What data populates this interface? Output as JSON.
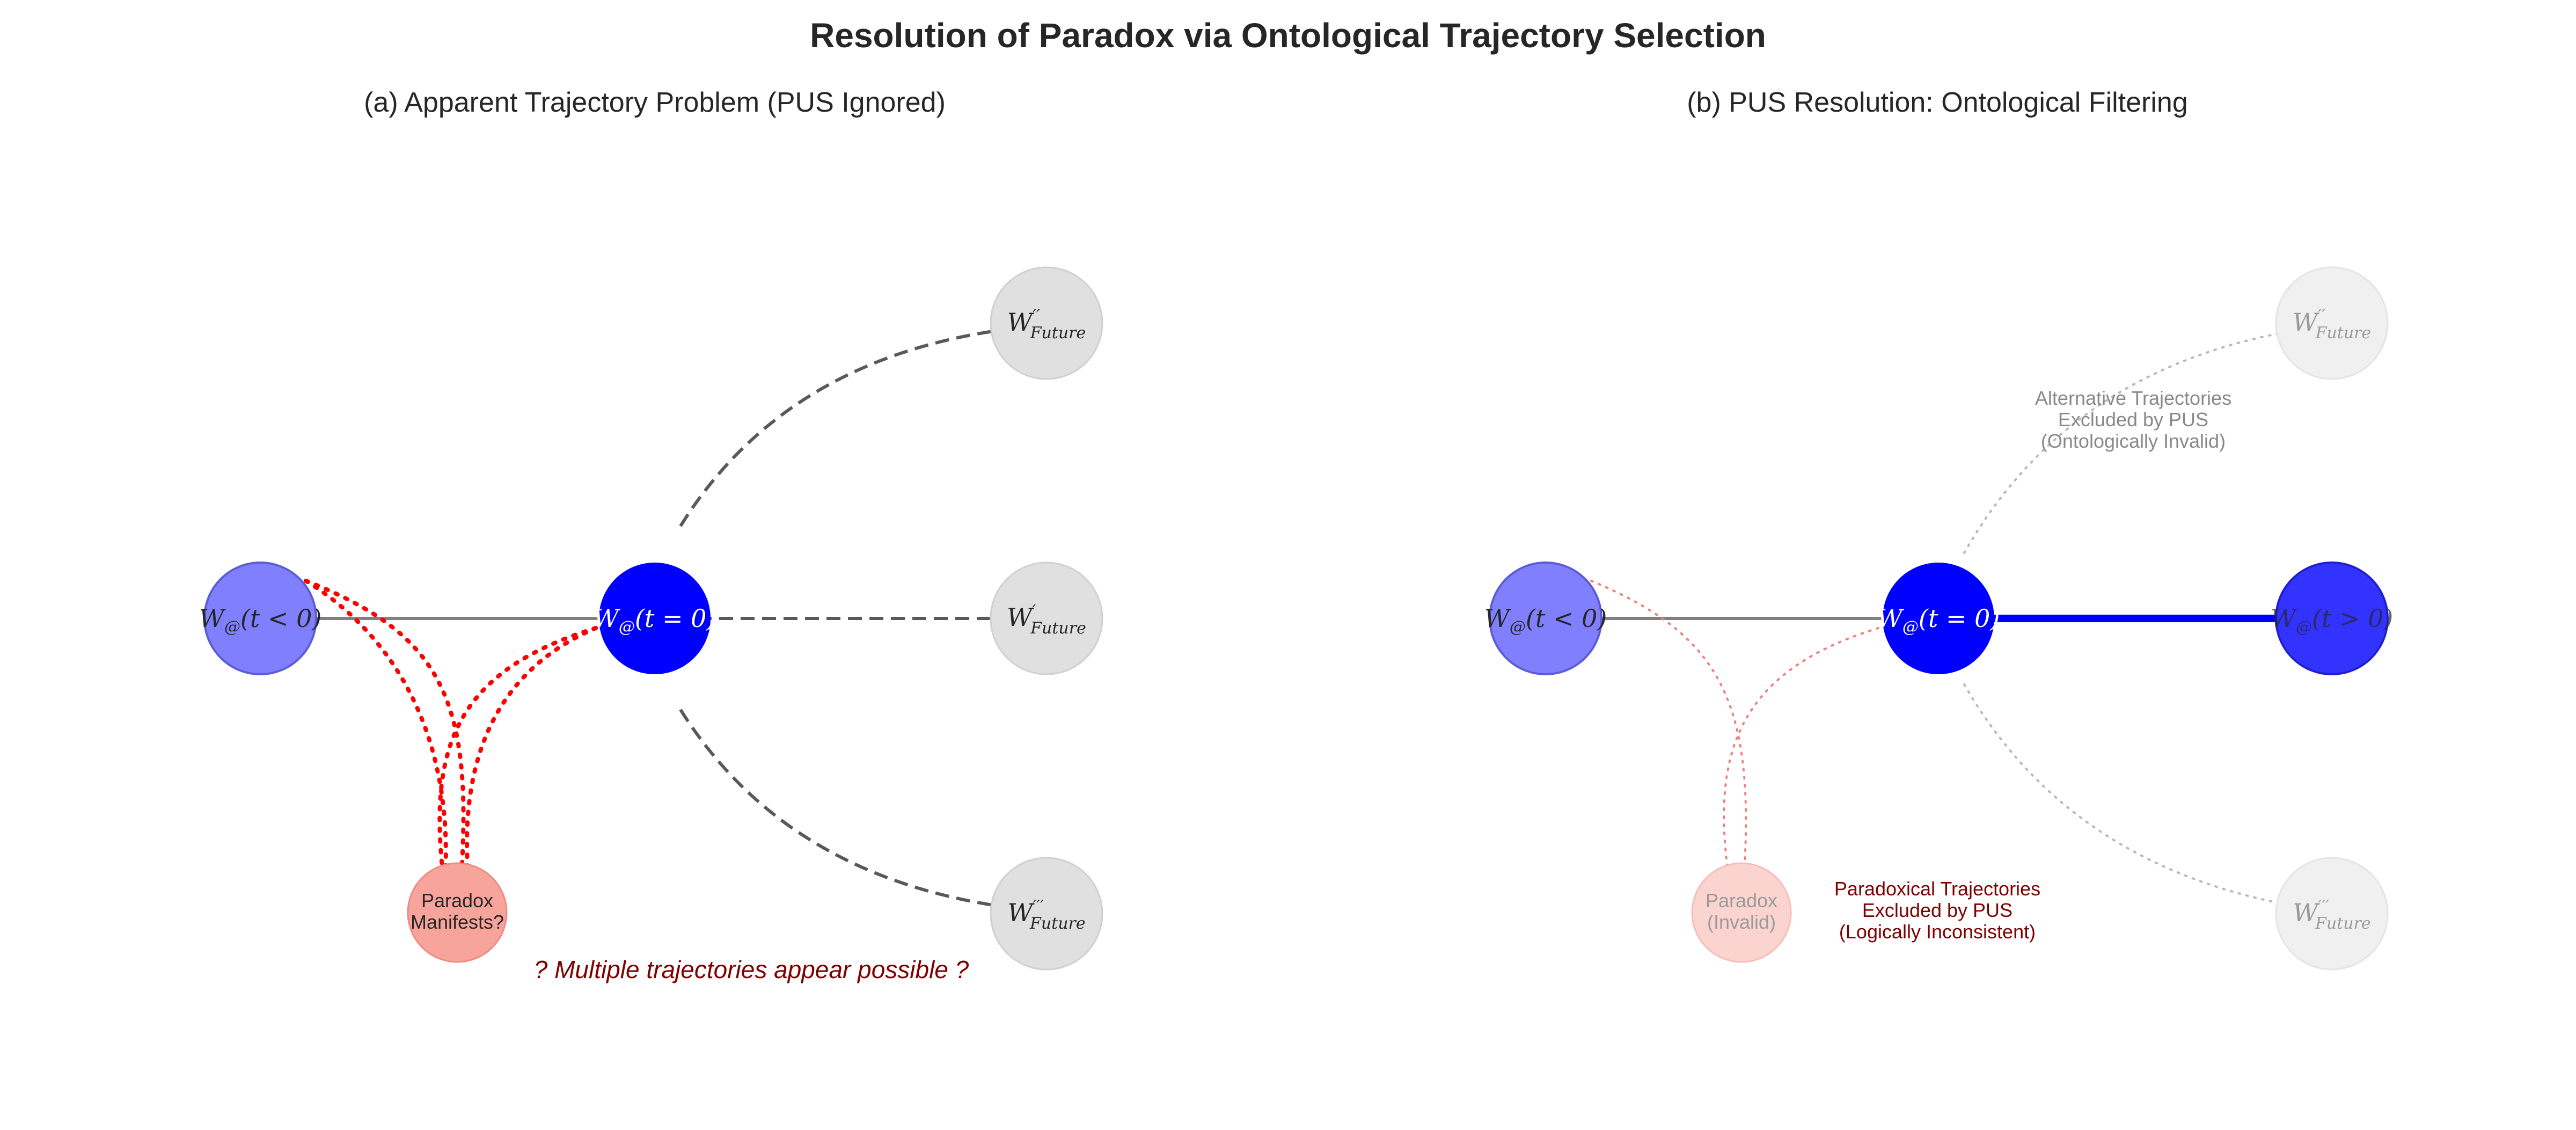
{
  "title": "Resolution of Paradox via Ontological Trajectory Selection",
  "panels": [
    {
      "id": "a",
      "title": "(a) Apparent Trajectory Problem (PUS Ignored)",
      "nodes": {
        "past": {
          "label_main": "W",
          "label_sub": "@",
          "label_rest": "(t < 0)"
        },
        "present": {
          "label_main": "W",
          "label_sub": "@",
          "label_rest": "(t = 0)"
        },
        "future_top": {
          "label_main": "W",
          "label_prime": "′′",
          "label_sub": "Future"
        },
        "future_mid": {
          "label_main": "W",
          "label_prime": "′",
          "label_sub": "Future"
        },
        "future_bot": {
          "label_main": "W",
          "label_prime": "′′′",
          "label_sub": "Future"
        },
        "paradox": {
          "label_line1": "Paradox",
          "label_line2": "Manifests?"
        }
      },
      "annotation": "? Multiple trajectories appear possible ?"
    },
    {
      "id": "b",
      "title": "(b) PUS Resolution: Ontological Filtering",
      "nodes": {
        "past": {
          "label_main": "W",
          "label_sub": "@",
          "label_rest": "(t < 0)"
        },
        "present": {
          "label_main": "W",
          "label_sub": "@",
          "label_rest": "(t = 0)"
        },
        "actual": {
          "label_main": "W",
          "label_sub": "@",
          "label_rest": "(t > 0)"
        },
        "future_top": {
          "label_main": "W",
          "label_prime": "′′",
          "label_sub": "Future"
        },
        "future_bot": {
          "label_main": "W",
          "label_prime": "′′′",
          "label_sub": "Future"
        },
        "paradox": {
          "label_line1": "Paradox",
          "label_line2": "(Invalid)"
        }
      },
      "annotation_alt": [
        "Alternative Trajectories",
        "Excluded by PUS",
        "(Ontologically Invalid)"
      ],
      "annotation_paradox": [
        "Paradoxical Trajectories",
        "Excluded by PUS",
        "(Logically Inconsistent)"
      ]
    }
  ],
  "colors": {
    "past": "#8080ff",
    "present": "#0000ff",
    "actual": "#3333ff",
    "future": "#e0e0e0",
    "future_faded": "#f0f0f0",
    "paradox": "#f7a59c",
    "paradox_faded": "#fbd4d0",
    "dotted_red": "#ff0000",
    "dashed_gray": "#595959",
    "dark_red": "#800000",
    "muted_gray": "#888888"
  }
}
